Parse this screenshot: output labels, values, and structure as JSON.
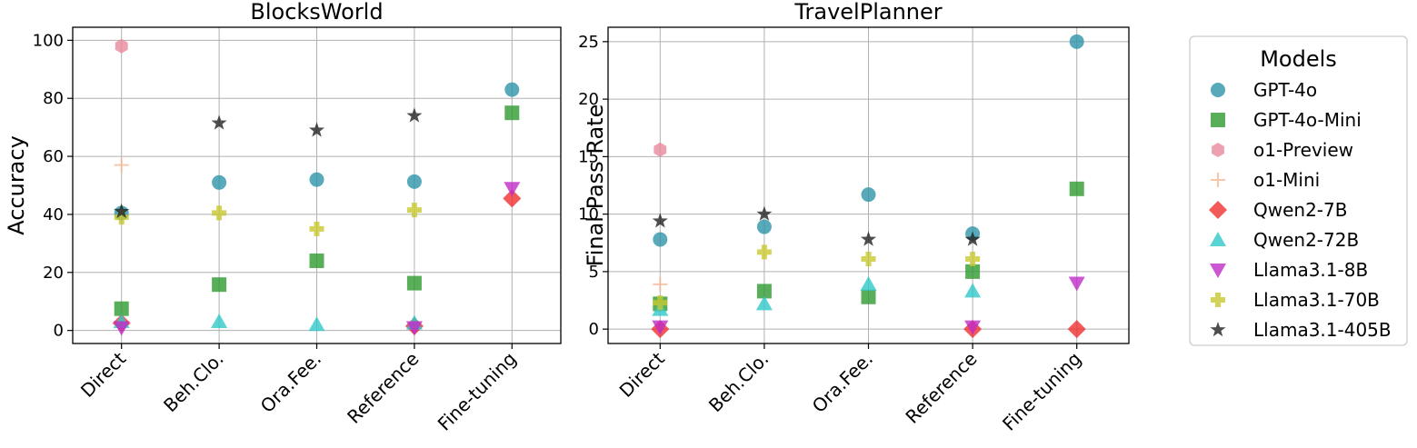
{
  "chart_data": [
    {
      "type": "scatter",
      "title": "BlocksWorld",
      "xlabel": "",
      "ylabel": "Accuracy",
      "categories": [
        "Direct",
        "Beh.Clo.",
        "Ora.Fee.",
        "Reference",
        "Fine-tuning"
      ],
      "ylim": [
        -4.5,
        104.5
      ],
      "yticks": [
        0,
        20,
        40,
        60,
        80,
        100
      ],
      "grid": true,
      "series": [
        {
          "name": "GPT-4o",
          "values": [
            40.5,
            51,
            52,
            51.3,
            83
          ]
        },
        {
          "name": "GPT-4o-Mini",
          "values": [
            7.5,
            15.8,
            24,
            16.3,
            75
          ]
        },
        {
          "name": "o1-Preview",
          "values": [
            98,
            null,
            null,
            null,
            null
          ]
        },
        {
          "name": "o1-Mini",
          "values": [
            57,
            null,
            null,
            null,
            null
          ]
        },
        {
          "name": "Qwen2-7B",
          "values": [
            2.5,
            null,
            null,
            1.5,
            45.5
          ]
        },
        {
          "name": "Qwen2-72B",
          "values": [
            3,
            3,
            2,
            2.5,
            null
          ]
        },
        {
          "name": "Llama3.1-8B",
          "values": [
            1,
            null,
            null,
            1,
            49
          ]
        },
        {
          "name": "Llama3.1-70B",
          "values": [
            39,
            40.5,
            35,
            41.5,
            null
          ]
        },
        {
          "name": "Llama3.1-405B",
          "values": [
            41,
            71.5,
            69,
            74,
            null
          ]
        }
      ]
    },
    {
      "type": "scatter",
      "title": "TravelPlanner",
      "xlabel": "",
      "ylabel": "Final Pass Rate",
      "categories": [
        "Direct",
        "Beh.Clo.",
        "Ora.Fee.",
        "Reference",
        "Fine-tuning"
      ],
      "ylim": [
        -1.25,
        26.25
      ],
      "yticks": [
        0,
        5,
        10,
        15,
        20,
        25
      ],
      "grid": true,
      "series": [
        {
          "name": "GPT-4o",
          "values": [
            7.8,
            8.9,
            11.7,
            8.3,
            25
          ]
        },
        {
          "name": "GPT-4o-Mini",
          "values": [
            2.2,
            3.3,
            2.8,
            5,
            12.2
          ]
        },
        {
          "name": "o1-Preview",
          "values": [
            15.6,
            null,
            null,
            null,
            null
          ]
        },
        {
          "name": "o1-Mini",
          "values": [
            3.9,
            null,
            null,
            null,
            null
          ]
        },
        {
          "name": "Qwen2-7B",
          "values": [
            0,
            null,
            null,
            0,
            0
          ]
        },
        {
          "name": "Qwen2-72B",
          "values": [
            1.7,
            2.2,
            3.9,
            3.3,
            null
          ]
        },
        {
          "name": "Llama3.1-8B",
          "values": [
            0.2,
            null,
            null,
            0.2,
            4
          ]
        },
        {
          "name": "Llama3.1-70B",
          "values": [
            2.3,
            6.7,
            6.1,
            6.1,
            null
          ]
        },
        {
          "name": "Llama3.1-405B",
          "values": [
            9.4,
            10,
            7.8,
            7.8,
            null
          ]
        }
      ]
    }
  ],
  "legend": {
    "title": "Models",
    "placement": "right",
    "items": [
      {
        "name": "GPT-4o",
        "marker": "circle",
        "color": "#2e94a8"
      },
      {
        "name": "GPT-4o-Mini",
        "marker": "square",
        "color": "#2f9a2f"
      },
      {
        "name": "o1-Preview",
        "marker": "hexagon",
        "color": "#e8889c"
      },
      {
        "name": "o1-Mini",
        "marker": "plus-thin",
        "color": "#f5b896"
      },
      {
        "name": "Qwen2-7B",
        "marker": "diamond",
        "color": "#f03030"
      },
      {
        "name": "Qwen2-72B",
        "marker": "triangle-up",
        "color": "#2fc8c8"
      },
      {
        "name": "Llama3.1-8B",
        "marker": "triangle-down",
        "color": "#c02cc8"
      },
      {
        "name": "Llama3.1-70B",
        "marker": "plus-filled",
        "color": "#c8c830"
      },
      {
        "name": "Llama3.1-405B",
        "marker": "star",
        "color": "#222222"
      }
    ]
  }
}
